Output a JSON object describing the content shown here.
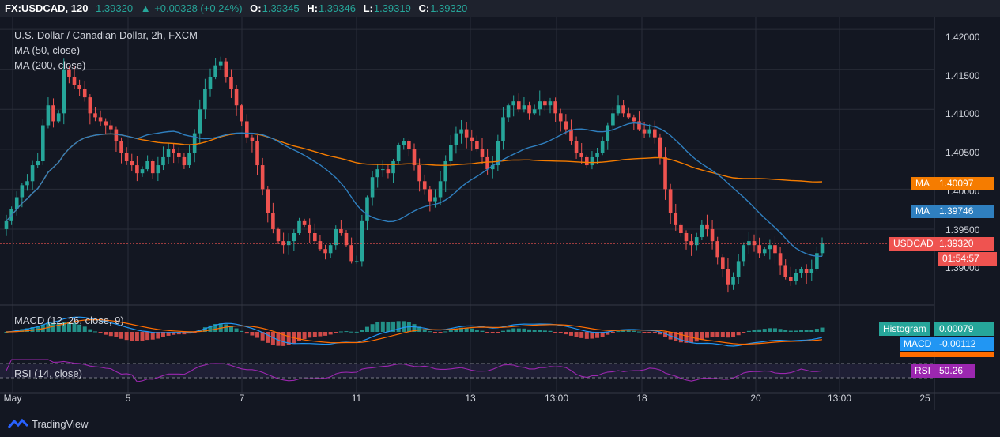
{
  "header": {
    "symbol": "FX:USDCAD, 120",
    "last": "1.39320",
    "change": "+0.00328 (+0.24%)",
    "o_label": "O:",
    "o": "1.39345",
    "h_label": "H:",
    "h": "1.39346",
    "l_label": "L:",
    "l": "1.39319",
    "c_label": "C:",
    "c": "1.39320",
    "up_arrow_icon": "triangle-up-icon"
  },
  "legend": {
    "title": "U.S. Dollar / Canadian Dollar, 2h, FXCM",
    "ma50": "MA (50, close)",
    "ma200": "MA (200, close)",
    "macd": "MACD (12, 26, close, 9)",
    "rsi": "RSI (14, close)"
  },
  "tags": {
    "ma200_label": "MA",
    "ma200_value": "1.40097",
    "ma50_label": "MA",
    "ma50_value": "1.39746",
    "price_label": "USDCAD",
    "price_value": "1.39320",
    "countdown": "01:54:57",
    "hist_label": "Histogram",
    "hist_value": "0.00079",
    "macd_label": "MACD",
    "macd_value": "-0.00112",
    "rsi_label": "RSI",
    "rsi_value": "50.26"
  },
  "yaxis": [
    "1.42000",
    "1.41500",
    "1.41000",
    "1.40500",
    "1.40000",
    "1.39500",
    "1.39000"
  ],
  "xaxis": [
    "May",
    "5",
    "7",
    "11",
    "13",
    "13:00",
    "18",
    "20",
    "13:00",
    "25"
  ],
  "footer": {
    "brand": "TradingView",
    "logo_icon": "tradingview-logo-icon"
  },
  "colors": {
    "background": "#131722",
    "up": "#26a69a",
    "down": "#ef5350",
    "ma50": "#2f7fbf",
    "ma200": "#f57c00",
    "macd": "#2196f3",
    "signal": "#ff6d00",
    "rsi": "#9c27b0",
    "grid": "#2a2e39"
  },
  "chart_data": {
    "type": "candlestick",
    "symbol": "USDCAD",
    "interval": "2h",
    "ylim": [
      1.3855,
      1.4215
    ],
    "closes": [
      1.396,
      1.3975,
      1.399,
      1.4005,
      1.401,
      1.403,
      1.4035,
      1.408,
      1.4105,
      1.4085,
      1.4095,
      1.415,
      1.414,
      1.413,
      1.4125,
      1.4115,
      1.4095,
      1.409,
      1.4085,
      1.408,
      1.4075,
      1.406,
      1.4045,
      1.4035,
      1.403,
      1.402,
      1.4025,
      1.4035,
      1.402,
      1.403,
      1.404,
      1.405,
      1.4045,
      1.404,
      1.403,
      1.4045,
      1.407,
      1.41,
      1.4125,
      1.414,
      1.4155,
      1.416,
      1.414,
      1.4125,
      1.4105,
      1.4085,
      1.4065,
      1.406,
      1.403,
      1.4,
      1.397,
      1.395,
      1.3935,
      1.393,
      1.3935,
      1.3945,
      1.396,
      1.3955,
      1.3945,
      1.3935,
      1.3925,
      1.392,
      1.393,
      1.395,
      1.3945,
      1.393,
      1.391,
      1.391,
      1.396,
      1.399,
      1.4015,
      1.4025,
      1.4025,
      1.402,
      1.4035,
      1.4055,
      1.406,
      1.405,
      1.403,
      1.401,
      1.4,
      1.3985,
      1.399,
      1.401,
      1.4035,
      1.4055,
      1.407,
      1.4075,
      1.4065,
      1.406,
      1.405,
      1.404,
      1.4025,
      1.403,
      1.406,
      1.409,
      1.4105,
      1.411,
      1.41,
      1.4105,
      1.4095,
      1.41,
      1.411,
      1.4105,
      1.411,
      1.4095,
      1.4085,
      1.4075,
      1.406,
      1.4045,
      1.404,
      1.403,
      1.404,
      1.4045,
      1.406,
      1.408,
      1.4095,
      1.4105,
      1.4095,
      1.409,
      1.4085,
      1.4075,
      1.407,
      1.4075,
      1.4065,
      1.404,
      1.4,
      1.397,
      1.3955,
      1.3945,
      1.3935,
      1.393,
      1.394,
      1.3955,
      1.395,
      1.3935,
      1.3915,
      1.39,
      1.388,
      1.389,
      1.391,
      1.393,
      1.3935,
      1.393,
      1.392,
      1.3925,
      1.393,
      1.392,
      1.3905,
      1.389,
      1.3885,
      1.3895,
      1.39,
      1.3895,
      1.39,
      1.392,
      1.3932
    ],
    "ma50_last": 1.39746,
    "ma200_last": 1.40097,
    "macd": {
      "histogram_last": 0.00079,
      "macd_last": -0.00112
    },
    "rsi_last": 50.26,
    "x_tick_labels": [
      "May",
      "5",
      "7",
      "11",
      "13",
      "13:00",
      "18",
      "20",
      "13:00",
      "25"
    ],
    "grid": true
  }
}
